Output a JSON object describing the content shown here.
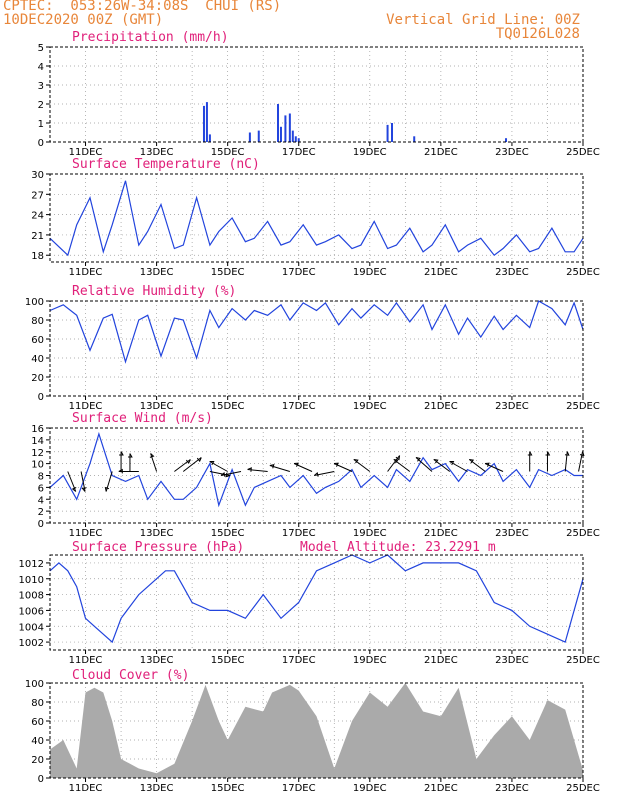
{
  "header": {
    "line1": "CPTEC:  053:26W-34:08S  CHUI (RS)",
    "line2": "10DEC2020 00Z (GMT)",
    "right1": "Vertical Grid Line: 00Z",
    "right2": "TQ0126L028"
  },
  "colors": {
    "header": "#e8863a",
    "title": "#e0207a",
    "series": "#2244dd",
    "cloud": "#aaaaaa",
    "arrow": "#000000"
  },
  "x_axis": {
    "start": "10DEC2020 00Z",
    "end": "25DEC2020 00Z",
    "tick_labels": [
      "11DEC",
      "13DEC",
      "15DEC",
      "17DEC",
      "19DEC",
      "21DEC",
      "23DEC",
      "25DEC"
    ]
  },
  "chart_data": [
    {
      "type": "bar",
      "title": "Precipitation (mm/h)",
      "ylim": [
        0,
        5
      ],
      "yticks": [
        0,
        1,
        2,
        3,
        4,
        5
      ],
      "grid": true,
      "series": [
        {
          "x": [
            "14DEC 08Z",
            "14DEC 10Z",
            "14DEC 12Z",
            "15DEC 15Z",
            "15DEC 21Z",
            "16DEC 10Z",
            "16DEC 12Z",
            "16DEC 15Z",
            "16DEC 18Z",
            "16DEC 20Z",
            "16DEC 22Z",
            "17DEC 00Z",
            "19DEC 12Z",
            "19DEC 15Z",
            "20DEC 06Z",
            "22DEC 20Z"
          ],
          "values": [
            1.9,
            2.1,
            0.4,
            0.5,
            0.6,
            2.0,
            0.8,
            1.4,
            1.5,
            0.6,
            0.3,
            0.2,
            0.9,
            1.0,
            0.3,
            0.2
          ]
        }
      ]
    },
    {
      "type": "line",
      "title": "Surface Temperature (nC)",
      "ylim": [
        17,
        30
      ],
      "yticks": [
        18,
        21,
        24,
        27,
        30
      ],
      "grid": true,
      "series": [
        {
          "x": [
            "10DEC 00Z",
            "10DEC 12Z",
            "10DEC 18Z",
            "11DEC 03Z",
            "11DEC 12Z",
            "11DEC 18Z",
            "12DEC 03Z",
            "12DEC 12Z",
            "12DEC 18Z",
            "13DEC 03Z",
            "13DEC 12Z",
            "13DEC 18Z",
            "14DEC 03Z",
            "14DEC 12Z",
            "14DEC 18Z",
            "15DEC 03Z",
            "15DEC 12Z",
            "15DEC 18Z",
            "16DEC 03Z",
            "16DEC 12Z",
            "16DEC 18Z",
            "17DEC 03Z",
            "17DEC 12Z",
            "17DEC 18Z",
            "18DEC 03Z",
            "18DEC 12Z",
            "18DEC 18Z",
            "19DEC 03Z",
            "19DEC 12Z",
            "19DEC 18Z",
            "20DEC 03Z",
            "20DEC 12Z",
            "20DEC 18Z",
            "21DEC 03Z",
            "21DEC 12Z",
            "21DEC 18Z",
            "22DEC 03Z",
            "22DEC 12Z",
            "22DEC 18Z",
            "23DEC 03Z",
            "23DEC 12Z",
            "23DEC 18Z",
            "24DEC 03Z",
            "24DEC 12Z",
            "24DEC 18Z",
            "25DEC 00Z"
          ],
          "values": [
            20.5,
            18.0,
            22.5,
            26.5,
            18.5,
            22.5,
            29.0,
            19.5,
            21.5,
            25.5,
            19.0,
            19.5,
            26.5,
            19.5,
            21.5,
            23.5,
            20.0,
            20.5,
            23.0,
            19.5,
            20.0,
            22.5,
            19.5,
            20.0,
            21.0,
            19.0,
            19.5,
            23.0,
            19.0,
            19.5,
            22.0,
            18.5,
            19.5,
            22.5,
            18.5,
            19.5,
            20.5,
            18.0,
            19.0,
            21.0,
            18.5,
            19.0,
            22.0,
            18.5,
            18.5,
            20.5
          ]
        }
      ]
    },
    {
      "type": "line",
      "title": "Relative Humidity (%)",
      "ylim": [
        0,
        100
      ],
      "yticks": [
        0,
        20,
        40,
        60,
        80,
        100
      ],
      "grid": true,
      "series": [
        {
          "x": [
            "10DEC 00Z",
            "10DEC 09Z",
            "10DEC 18Z",
            "11DEC 03Z",
            "11DEC 12Z",
            "11DEC 18Z",
            "12DEC 03Z",
            "12DEC 12Z",
            "12DEC 18Z",
            "13DEC 03Z",
            "13DEC 12Z",
            "13DEC 18Z",
            "14DEC 03Z",
            "14DEC 12Z",
            "14DEC 18Z",
            "15DEC 03Z",
            "15DEC 12Z",
            "15DEC 18Z",
            "16DEC 03Z",
            "16DEC 12Z",
            "16DEC 18Z",
            "17DEC 03Z",
            "17DEC 12Z",
            "17DEC 18Z",
            "18DEC 03Z",
            "18DEC 12Z",
            "18DEC 18Z",
            "19DEC 03Z",
            "19DEC 12Z",
            "19DEC 18Z",
            "20DEC 03Z",
            "20DEC 12Z",
            "20DEC 18Z",
            "21DEC 03Z",
            "21DEC 12Z",
            "21DEC 18Z",
            "22DEC 03Z",
            "22DEC 12Z",
            "22DEC 18Z",
            "23DEC 03Z",
            "23DEC 12Z",
            "23DEC 18Z",
            "24DEC 03Z",
            "24DEC 12Z",
            "24DEC 18Z",
            "25DEC 00Z"
          ],
          "values": [
            90,
            96,
            85,
            48,
            82,
            86,
            36,
            80,
            85,
            42,
            82,
            80,
            40,
            90,
            72,
            92,
            80,
            90,
            85,
            96,
            80,
            98,
            90,
            98,
            75,
            92,
            82,
            96,
            85,
            98,
            78,
            96,
            70,
            96,
            65,
            82,
            62,
            84,
            70,
            85,
            72,
            100,
            92,
            75,
            98,
            70
          ]
        }
      ]
    },
    {
      "type": "line",
      "title": "Surface Wind (m/s)",
      "ylim": [
        0,
        16
      ],
      "yticks": [
        0,
        2,
        4,
        6,
        8,
        10,
        12,
        14,
        16
      ],
      "grid": true,
      "series": [
        {
          "x": [
            "10DEC 00Z",
            "10DEC 09Z",
            "10DEC 18Z",
            "11DEC 03Z",
            "11DEC 09Z",
            "11DEC 18Z",
            "12DEC 03Z",
            "12DEC 12Z",
            "12DEC 18Z",
            "13DEC 03Z",
            "13DEC 12Z",
            "13DEC 18Z",
            "14DEC 03Z",
            "14DEC 12Z",
            "14DEC 18Z",
            "15DEC 03Z",
            "15DEC 12Z",
            "15DEC 18Z",
            "16DEC 03Z",
            "16DEC 12Z",
            "16DEC 18Z",
            "17DEC 03Z",
            "17DEC 12Z",
            "17DEC 18Z",
            "18DEC 03Z",
            "18DEC 12Z",
            "18DEC 18Z",
            "19DEC 03Z",
            "19DEC 12Z",
            "19DEC 18Z",
            "20DEC 03Z",
            "20DEC 12Z",
            "20DEC 18Z",
            "21DEC 03Z",
            "21DEC 12Z",
            "21DEC 18Z",
            "22DEC 03Z",
            "22DEC 12Z",
            "22DEC 18Z",
            "23DEC 03Z",
            "23DEC 12Z",
            "23DEC 18Z",
            "24DEC 03Z",
            "24DEC 12Z",
            "24DEC 18Z",
            "25DEC 00Z"
          ],
          "values": [
            6,
            8,
            4,
            10,
            15,
            8,
            7,
            8,
            4,
            7,
            4,
            4,
            6,
            10,
            3,
            9,
            3,
            6,
            7,
            8,
            6,
            8,
            5,
            6,
            7,
            9,
            6,
            8,
            6,
            9,
            7,
            11,
            9,
            10,
            7,
            9,
            8,
            10,
            7,
            9,
            6,
            9,
            8,
            9,
            8,
            8
          ]
        }
      ],
      "arrows": [
        {
          "x": "10DEC 12Z",
          "u": 0.4,
          "v": -1.0
        },
        {
          "x": "10DEC 21Z",
          "u": 0.2,
          "v": -1.0
        },
        {
          "x": "11DEC 18Z",
          "u": -0.3,
          "v": -1.0
        },
        {
          "x": "12DEC 00Z",
          "u": 0.0,
          "v": 1.0
        },
        {
          "x": "12DEC 06Z",
          "u": 0.0,
          "v": 0.9
        },
        {
          "x": "12DEC 12Z",
          "u": -1.0,
          "v": 0.0
        },
        {
          "x": "13DEC 00Z",
          "u": -0.3,
          "v": 0.9
        },
        {
          "x": "13DEC 12Z",
          "u": 0.8,
          "v": 0.6
        },
        {
          "x": "13DEC 18Z",
          "u": 0.9,
          "v": 0.7
        },
        {
          "x": "14DEC 12Z",
          "u": 1.0,
          "v": -0.2
        },
        {
          "x": "15DEC 00Z",
          "u": -0.9,
          "v": 0.5
        },
        {
          "x": "15DEC 09Z",
          "u": -1.0,
          "v": -0.2
        },
        {
          "x": "16DEC 03Z",
          "u": -1.0,
          "v": 0.1
        },
        {
          "x": "16DEC 18Z",
          "u": -1.0,
          "v": 0.3
        },
        {
          "x": "17DEC 09Z",
          "u": -0.9,
          "v": 0.4
        },
        {
          "x": "18DEC 00Z",
          "u": -1.0,
          "v": -0.2
        },
        {
          "x": "18DEC 12Z",
          "u": -0.9,
          "v": 0.4
        },
        {
          "x": "19DEC 00Z",
          "u": -0.8,
          "v": 0.6
        },
        {
          "x": "19DEC 12Z",
          "u": 0.6,
          "v": 0.8
        },
        {
          "x": "20DEC 03Z",
          "u": -0.8,
          "v": 0.6
        },
        {
          "x": "20DEC 18Z",
          "u": -0.8,
          "v": 0.7
        },
        {
          "x": "21DEC 06Z",
          "u": -0.8,
          "v": 0.6
        },
        {
          "x": "21DEC 18Z",
          "u": -0.9,
          "v": 0.5
        },
        {
          "x": "22DEC 06Z",
          "u": -0.8,
          "v": 0.6
        },
        {
          "x": "22DEC 18Z",
          "u": -0.9,
          "v": 0.4
        },
        {
          "x": "23DEC 12Z",
          "u": 0.0,
          "v": 1.0
        },
        {
          "x": "24DEC 00Z",
          "u": 0.0,
          "v": 1.0
        },
        {
          "x": "24DEC 12Z",
          "u": 0.1,
          "v": 1.0
        },
        {
          "x": "24DEC 21Z",
          "u": 0.2,
          "v": 1.0
        }
      ]
    },
    {
      "type": "line",
      "title": "Surface Pressure (hPa)",
      "annotation": "Model Altitude: 23.2291 m",
      "ylim": [
        1001,
        1013
      ],
      "yticks": [
        1002,
        1004,
        1006,
        1008,
        1010,
        1012
      ],
      "grid": true,
      "series": [
        {
          "x": [
            "10DEC 00Z",
            "10DEC 06Z",
            "10DEC 12Z",
            "10DEC 18Z",
            "11DEC 00Z",
            "11DEC 06Z",
            "11DEC 12Z",
            "11DEC 18Z",
            "12DEC 00Z",
            "12DEC 12Z",
            "12DEC 18Z",
            "13DEC 06Z",
            "13DEC 12Z",
            "13DEC 18Z",
            "14DEC 00Z",
            "14DEC 12Z",
            "15DEC 00Z",
            "15DEC 12Z",
            "16DEC 00Z",
            "16DEC 12Z",
            "17DEC 00Z",
            "17DEC 12Z",
            "18DEC 00Z",
            "18DEC 12Z",
            "19DEC 00Z",
            "19DEC 12Z",
            "20DEC 00Z",
            "20DEC 12Z",
            "21DEC 00Z",
            "21DEC 12Z",
            "22DEC 00Z",
            "22DEC 12Z",
            "23DEC 00Z",
            "23DEC 12Z",
            "24DEC 00Z",
            "24DEC 12Z",
            "25DEC 00Z"
          ],
          "values": [
            1011,
            1012,
            1011,
            1009,
            1005,
            1004,
            1003,
            1002,
            1005,
            1008,
            1009,
            1011,
            1011,
            1009,
            1007,
            1006,
            1006,
            1005,
            1008,
            1005,
            1007,
            1011,
            1012,
            1013,
            1012,
            1013,
            1011,
            1012,
            1012,
            1012,
            1011,
            1007,
            1006,
            1004,
            1003,
            1002,
            1010
          ]
        }
      ]
    },
    {
      "type": "area",
      "title": "Cloud Cover (%)",
      "ylim": [
        0,
        100
      ],
      "yticks": [
        0,
        20,
        40,
        60,
        80,
        100
      ],
      "grid": true,
      "series": [
        {
          "x": [
            "10DEC 00Z",
            "10DEC 09Z",
            "10DEC 18Z",
            "11DEC 00Z",
            "11DEC 06Z",
            "11DEC 12Z",
            "11DEC 18Z",
            "12DEC 00Z",
            "12DEC 12Z",
            "13DEC 00Z",
            "13DEC 12Z",
            "14DEC 00Z",
            "14DEC 09Z",
            "14DEC 18Z",
            "15DEC 00Z",
            "15DEC 12Z",
            "16DEC 00Z",
            "16DEC 06Z",
            "16DEC 18Z",
            "17DEC 00Z",
            "17DEC 12Z",
            "18DEC 00Z",
            "18DEC 12Z",
            "19DEC 00Z",
            "19DEC 12Z",
            "20DEC 00Z",
            "20DEC 12Z",
            "21DEC 00Z",
            "21DEC 12Z",
            "22DEC 00Z",
            "22DEC 12Z",
            "23DEC 00Z",
            "23DEC 12Z",
            "24DEC 00Z",
            "24DEC 12Z",
            "25DEC 00Z"
          ],
          "values": [
            30,
            40,
            10,
            90,
            95,
            90,
            60,
            20,
            10,
            5,
            15,
            60,
            98,
            60,
            40,
            75,
            70,
            90,
            98,
            92,
            65,
            10,
            60,
            90,
            75,
            100,
            70,
            65,
            95,
            20,
            45,
            65,
            40,
            82,
            72,
            8
          ]
        }
      ]
    }
  ]
}
